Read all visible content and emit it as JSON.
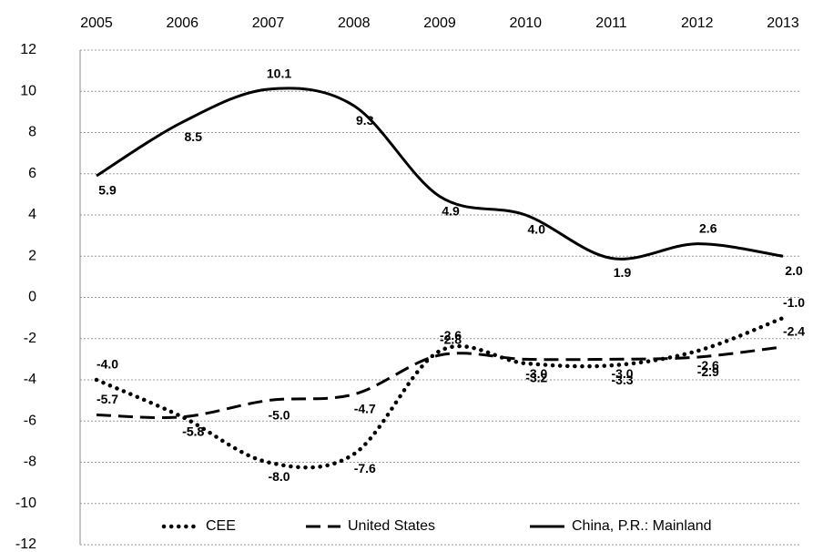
{
  "chart_data": {
    "type": "line",
    "categories": [
      "2005",
      "2006",
      "2007",
      "2008",
      "2009",
      "2010",
      "2011",
      "2012",
      "2013"
    ],
    "series": [
      {
        "name": "CEE",
        "color": "#000000",
        "dash": "dotted",
        "values": [
          -4.0,
          -5.8,
          -8.0,
          -7.6,
          -2.6,
          -3.2,
          -3.3,
          -2.6,
          -1.0
        ],
        "value_labels": [
          "-4.0",
          "-5.8",
          "-8.0",
          "-7.6",
          "-2.6",
          "-3.2",
          "-3.3",
          "-2.6",
          "-1.0"
        ]
      },
      {
        "name": "United States",
        "color": "#000000",
        "dash": "dashed",
        "values": [
          -5.7,
          -5.8,
          -5.0,
          -4.7,
          -2.8,
          -3.0,
          -3.0,
          -2.9,
          -2.4
        ],
        "value_labels": [
          "-5.7",
          "-5.8",
          "-5.0",
          "-4.7",
          "-2.8",
          "-3.0",
          "-3.0",
          "-2.9",
          "-2.4"
        ]
      },
      {
        "name": "China, P.R.: Mainland",
        "color": "#000000",
        "dash": "solid",
        "values": [
          5.9,
          8.5,
          10.1,
          9.3,
          4.9,
          4.0,
          1.9,
          2.6,
          2.0
        ],
        "value_labels": [
          "5.9",
          "8.5",
          "10.1",
          "9.3",
          "4.9",
          "4.0",
          "1.9",
          "2.6",
          "2.0"
        ]
      }
    ],
    "ylim": [
      -12,
      12
    ],
    "yticks": [
      -12,
      -10,
      -8,
      -6,
      -4,
      -2,
      0,
      2,
      4,
      6,
      8,
      10,
      12
    ],
    "grid": true,
    "legend": "bottom"
  }
}
